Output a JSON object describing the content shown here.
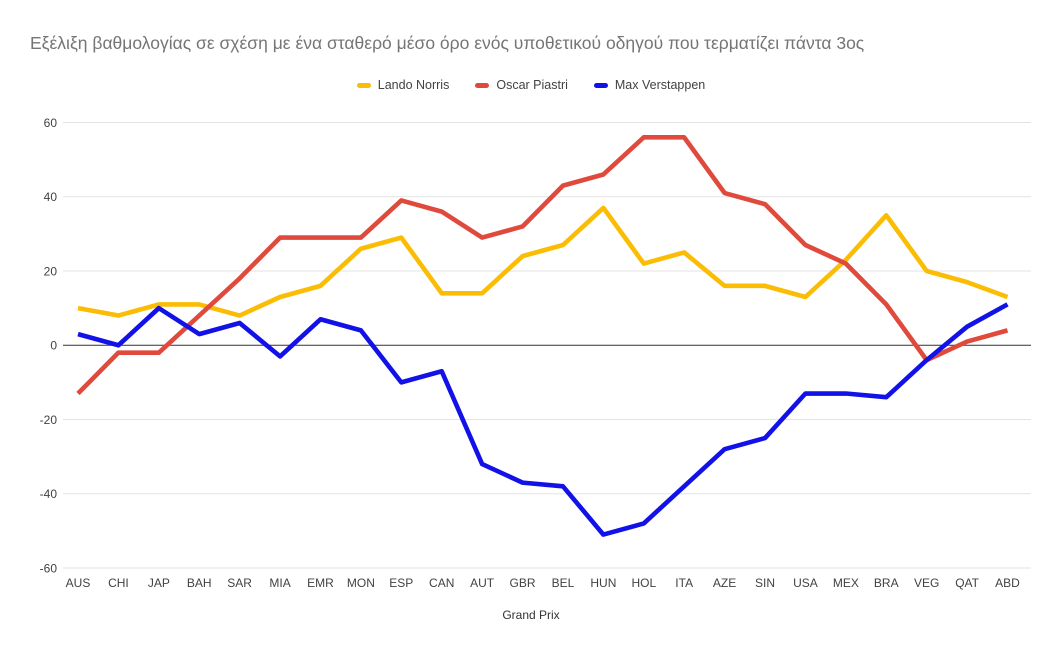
{
  "chart_data": {
    "type": "line",
    "title": "Εξέλιξη βαθμολογίας σε σχέση με ένα σταθερό μέσο όρο ενός υποθετικού οδηγού που τερματίζει πάντα 3ος",
    "xlabel": "Grand Prix",
    "ylabel": "",
    "ylim": [
      -60,
      60
    ],
    "yticks": [
      60,
      40,
      20,
      0,
      -20,
      -40,
      -60
    ],
    "grid": true,
    "legend_position": "top-center",
    "background": "#ffffff",
    "gridline_color": "#e3e3e3",
    "zero_line_color": "#333333",
    "axis_label_color": "#424242",
    "title_color": "#757575",
    "categories": [
      "AUS",
      "CHI",
      "JAP",
      "BAH",
      "SAR",
      "MIA",
      "EMR",
      "MON",
      "ESP",
      "CAN",
      "AUT",
      "GBR",
      "BEL",
      "HUN",
      "HOL",
      "ITA",
      "AZE",
      "SIN",
      "USA",
      "MEX",
      "BRA",
      "VEG",
      "QAT",
      "ABD"
    ],
    "series": [
      {
        "name": "Lando Norris",
        "color": "#FBBC04",
        "values": [
          10,
          8,
          11,
          11,
          8,
          13,
          16,
          26,
          29,
          14,
          14,
          24,
          27,
          37,
          22,
          25,
          16,
          16,
          13,
          23,
          35,
          20,
          17,
          13
        ]
      },
      {
        "name": "Oscar Piastri",
        "color": "#E04A3C",
        "values": [
          -13,
          -2,
          -2,
          8,
          18,
          29,
          29,
          29,
          39,
          36,
          29,
          32,
          43,
          46,
          56,
          56,
          41,
          38,
          27,
          22,
          11,
          -4,
          1,
          4
        ]
      },
      {
        "name": "Max Verstappen",
        "color": "#1111E8",
        "values": [
          3,
          0,
          10,
          3,
          6,
          -3,
          7,
          4,
          -10,
          -7,
          -32,
          -37,
          -38,
          -51,
          -48,
          -38,
          -28,
          -25,
          -13,
          -13,
          -14,
          -4,
          5,
          11
        ]
      }
    ]
  }
}
